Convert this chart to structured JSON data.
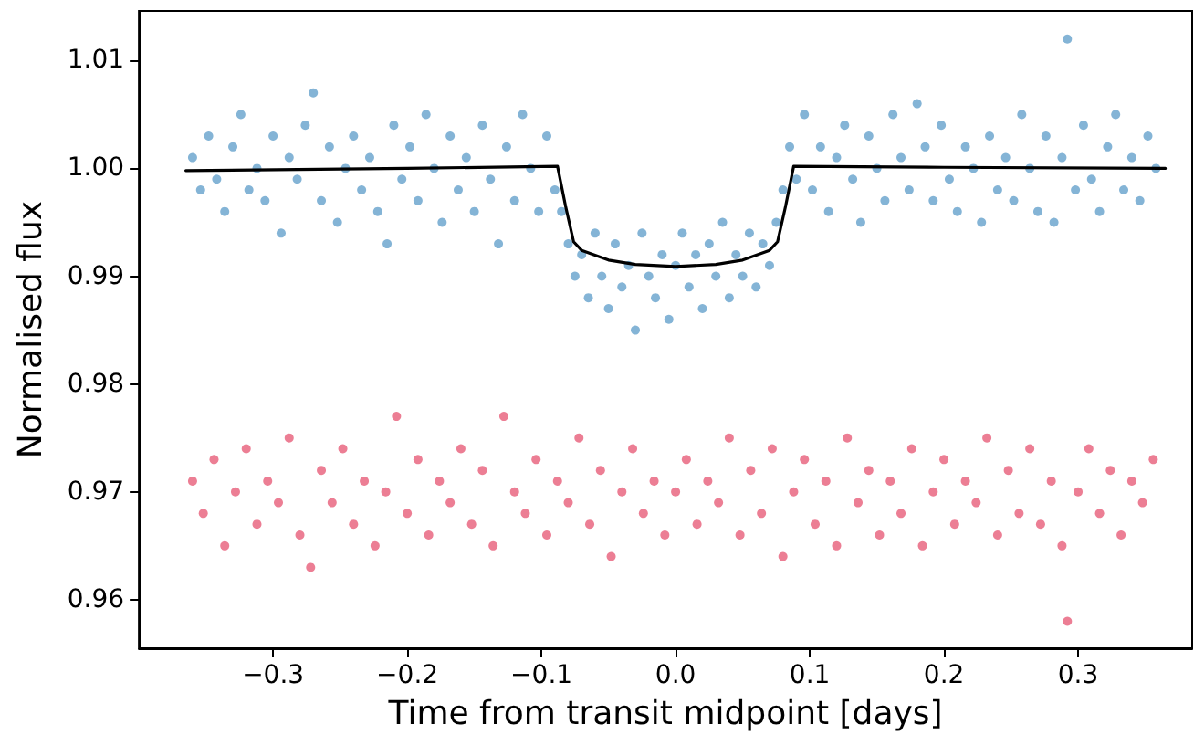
{
  "chart_data": {
    "type": "scatter",
    "xlabel": "Time from transit midpoint [days]",
    "ylabel": "Normalised flux",
    "marker": "circle",
    "line_style": "solid",
    "grid": false,
    "xlim": [
      -0.4,
      0.385
    ],
    "ylim": [
      0.9555,
      1.0146
    ],
    "xticks": [
      {
        "value": -0.3,
        "label": "−0.3"
      },
      {
        "value": -0.2,
        "label": "−0.2"
      },
      {
        "value": -0.1,
        "label": "−0.1"
      },
      {
        "value": 0,
        "label": "0.0"
      },
      {
        "value": 0.1,
        "label": "0.1"
      },
      {
        "value": 0.2,
        "label": "0.2"
      },
      {
        "value": 0.3,
        "label": "0.3"
      }
    ],
    "yticks": [
      {
        "value": 0.96,
        "label": "0.96"
      },
      {
        "value": 0.97,
        "label": "0.97"
      },
      {
        "value": 0.98,
        "label": "0.98"
      },
      {
        "value": 0.99,
        "label": "0.99"
      },
      {
        "value": 1.0,
        "label": "1.00"
      },
      {
        "value": 1.01,
        "label": "1.01"
      }
    ],
    "series": [
      {
        "color": "#1f77b4",
        "x": [
          -0.36,
          -0.354,
          -0.348,
          -0.342,
          -0.336,
          -0.33,
          -0.324,
          -0.318,
          -0.312,
          -0.306,
          -0.3,
          -0.294,
          -0.288,
          -0.282,
          -0.276,
          -0.27,
          -0.264,
          -0.258,
          -0.252,
          -0.246,
          -0.24,
          -0.234,
          -0.228,
          -0.222,
          -0.215,
          -0.21,
          -0.204,
          -0.198,
          -0.192,
          -0.186,
          -0.18,
          -0.174,
          -0.168,
          -0.162,
          -0.156,
          -0.15,
          -0.144,
          -0.138,
          -0.132,
          -0.126,
          -0.12,
          -0.114,
          -0.108,
          -0.102,
          -0.096,
          -0.09,
          -0.085,
          -0.08,
          -0.075,
          -0.07,
          -0.065,
          -0.06,
          -0.055,
          -0.05,
          -0.045,
          -0.04,
          -0.035,
          -0.03,
          -0.025,
          -0.02,
          -0.015,
          -0.01,
          -0.005,
          0.0,
          0.005,
          0.01,
          0.015,
          0.02,
          0.025,
          0.03,
          0.035,
          0.04,
          0.045,
          0.05,
          0.055,
          0.06,
          0.065,
          0.07,
          0.075,
          0.08,
          0.085,
          0.09,
          0.096,
          0.102,
          0.108,
          0.114,
          0.12,
          0.126,
          0.132,
          0.138,
          0.144,
          0.15,
          0.156,
          0.162,
          0.168,
          0.174,
          0.18,
          0.186,
          0.192,
          0.198,
          0.204,
          0.21,
          0.216,
          0.222,
          0.228,
          0.234,
          0.24,
          0.246,
          0.252,
          0.258,
          0.264,
          0.27,
          0.276,
          0.282,
          0.288,
          0.292,
          0.298,
          0.304,
          0.31,
          0.316,
          0.322,
          0.328,
          0.334,
          0.34,
          0.346,
          0.352,
          0.358
        ],
        "values": [
          1.001,
          0.998,
          1.003,
          0.999,
          0.996,
          1.002,
          1.005,
          0.998,
          1.0,
          0.997,
          1.003,
          0.994,
          1.001,
          0.999,
          1.004,
          1.007,
          0.997,
          1.002,
          0.995,
          1.0,
          1.003,
          0.998,
          1.001,
          0.996,
          0.993,
          1.004,
          0.999,
          1.002,
          0.997,
          1.005,
          1.0,
          0.995,
          1.003,
          0.998,
          1.001,
          0.996,
          1.004,
          0.999,
          0.993,
          1.002,
          0.997,
          1.005,
          1.0,
          0.996,
          1.003,
          0.998,
          0.996,
          0.993,
          0.99,
          0.992,
          0.988,
          0.994,
          0.99,
          0.987,
          0.993,
          0.989,
          0.991,
          0.985,
          0.994,
          0.99,
          0.988,
          0.992,
          0.986,
          0.991,
          0.994,
          0.989,
          0.992,
          0.987,
          0.993,
          0.99,
          0.995,
          0.988,
          0.992,
          0.99,
          0.994,
          0.989,
          0.993,
          0.991,
          0.995,
          0.998,
          1.002,
          0.999,
          1.005,
          0.998,
          1.002,
          0.996,
          1.001,
          1.004,
          0.999,
          0.995,
          1.003,
          1.0,
          0.997,
          1.005,
          1.001,
          0.998,
          1.006,
          1.002,
          0.997,
          1.004,
          0.999,
          0.996,
          1.002,
          1.0,
          0.995,
          1.003,
          0.998,
          1.001,
          0.997,
          1.005,
          1.0,
          0.996,
          1.003,
          0.995,
          1.001,
          1.012,
          0.998,
          1.004,
          0.999,
          0.996,
          1.002,
          1.005,
          0.998,
          1.001,
          0.997,
          1.003,
          1.0
        ]
      },
      {
        "color": "#dc143c",
        "x": [
          -0.36,
          -0.352,
          -0.344,
          -0.336,
          -0.328,
          -0.32,
          -0.312,
          -0.304,
          -0.296,
          -0.288,
          -0.28,
          -0.272,
          -0.264,
          -0.256,
          -0.248,
          -0.24,
          -0.232,
          -0.224,
          -0.216,
          -0.208,
          -0.2,
          -0.192,
          -0.184,
          -0.176,
          -0.168,
          -0.16,
          -0.152,
          -0.144,
          -0.136,
          -0.128,
          -0.12,
          -0.112,
          -0.104,
          -0.096,
          -0.088,
          -0.08,
          -0.072,
          -0.064,
          -0.056,
          -0.048,
          -0.04,
          -0.032,
          -0.024,
          -0.016,
          -0.008,
          0.0,
          0.008,
          0.016,
          0.024,
          0.032,
          0.04,
          0.048,
          0.056,
          0.064,
          0.072,
          0.08,
          0.088,
          0.096,
          0.104,
          0.112,
          0.12,
          0.128,
          0.136,
          0.144,
          0.152,
          0.16,
          0.168,
          0.176,
          0.184,
          0.192,
          0.2,
          0.208,
          0.216,
          0.224,
          0.232,
          0.24,
          0.248,
          0.256,
          0.264,
          0.272,
          0.28,
          0.288,
          0.292,
          0.3,
          0.308,
          0.316,
          0.324,
          0.332,
          0.34,
          0.348,
          0.356
        ],
        "values": [
          0.971,
          0.968,
          0.973,
          0.965,
          0.97,
          0.974,
          0.967,
          0.971,
          0.969,
          0.975,
          0.966,
          0.963,
          0.972,
          0.969,
          0.974,
          0.967,
          0.971,
          0.965,
          0.97,
          0.977,
          0.968,
          0.973,
          0.966,
          0.971,
          0.969,
          0.974,
          0.967,
          0.972,
          0.965,
          0.977,
          0.97,
          0.968,
          0.973,
          0.966,
          0.971,
          0.969,
          0.975,
          0.967,
          0.972,
          0.964,
          0.97,
          0.974,
          0.968,
          0.971,
          0.966,
          0.97,
          0.973,
          0.967,
          0.971,
          0.969,
          0.975,
          0.966,
          0.972,
          0.968,
          0.974,
          0.964,
          0.97,
          0.973,
          0.967,
          0.971,
          0.965,
          0.975,
          0.969,
          0.972,
          0.966,
          0.971,
          0.968,
          0.974,
          0.965,
          0.97,
          0.973,
          0.967,
          0.971,
          0.969,
          0.975,
          0.966,
          0.972,
          0.968,
          0.974,
          0.967,
          0.971,
          0.965,
          0.958,
          0.97,
          0.974,
          0.968,
          0.972,
          0.966,
          0.971,
          0.969,
          0.973
        ]
      },
      {
        "type": "line",
        "color": "#000000",
        "marker": "none",
        "x": [
          -0.365,
          -0.2,
          -0.088,
          -0.082,
          -0.076,
          -0.07,
          -0.05,
          -0.03,
          0,
          0.03,
          0.05,
          0.07,
          0.076,
          0.082,
          0.088,
          0.2,
          0.365
        ],
        "values": [
          0.9998,
          1.0,
          1.0002,
          0.9965,
          0.9932,
          0.9924,
          0.9915,
          0.9911,
          0.9909,
          0.9911,
          0.9915,
          0.9924,
          0.9932,
          0.9965,
          1.0002,
          1.0001,
          1.0
        ]
      }
    ]
  }
}
